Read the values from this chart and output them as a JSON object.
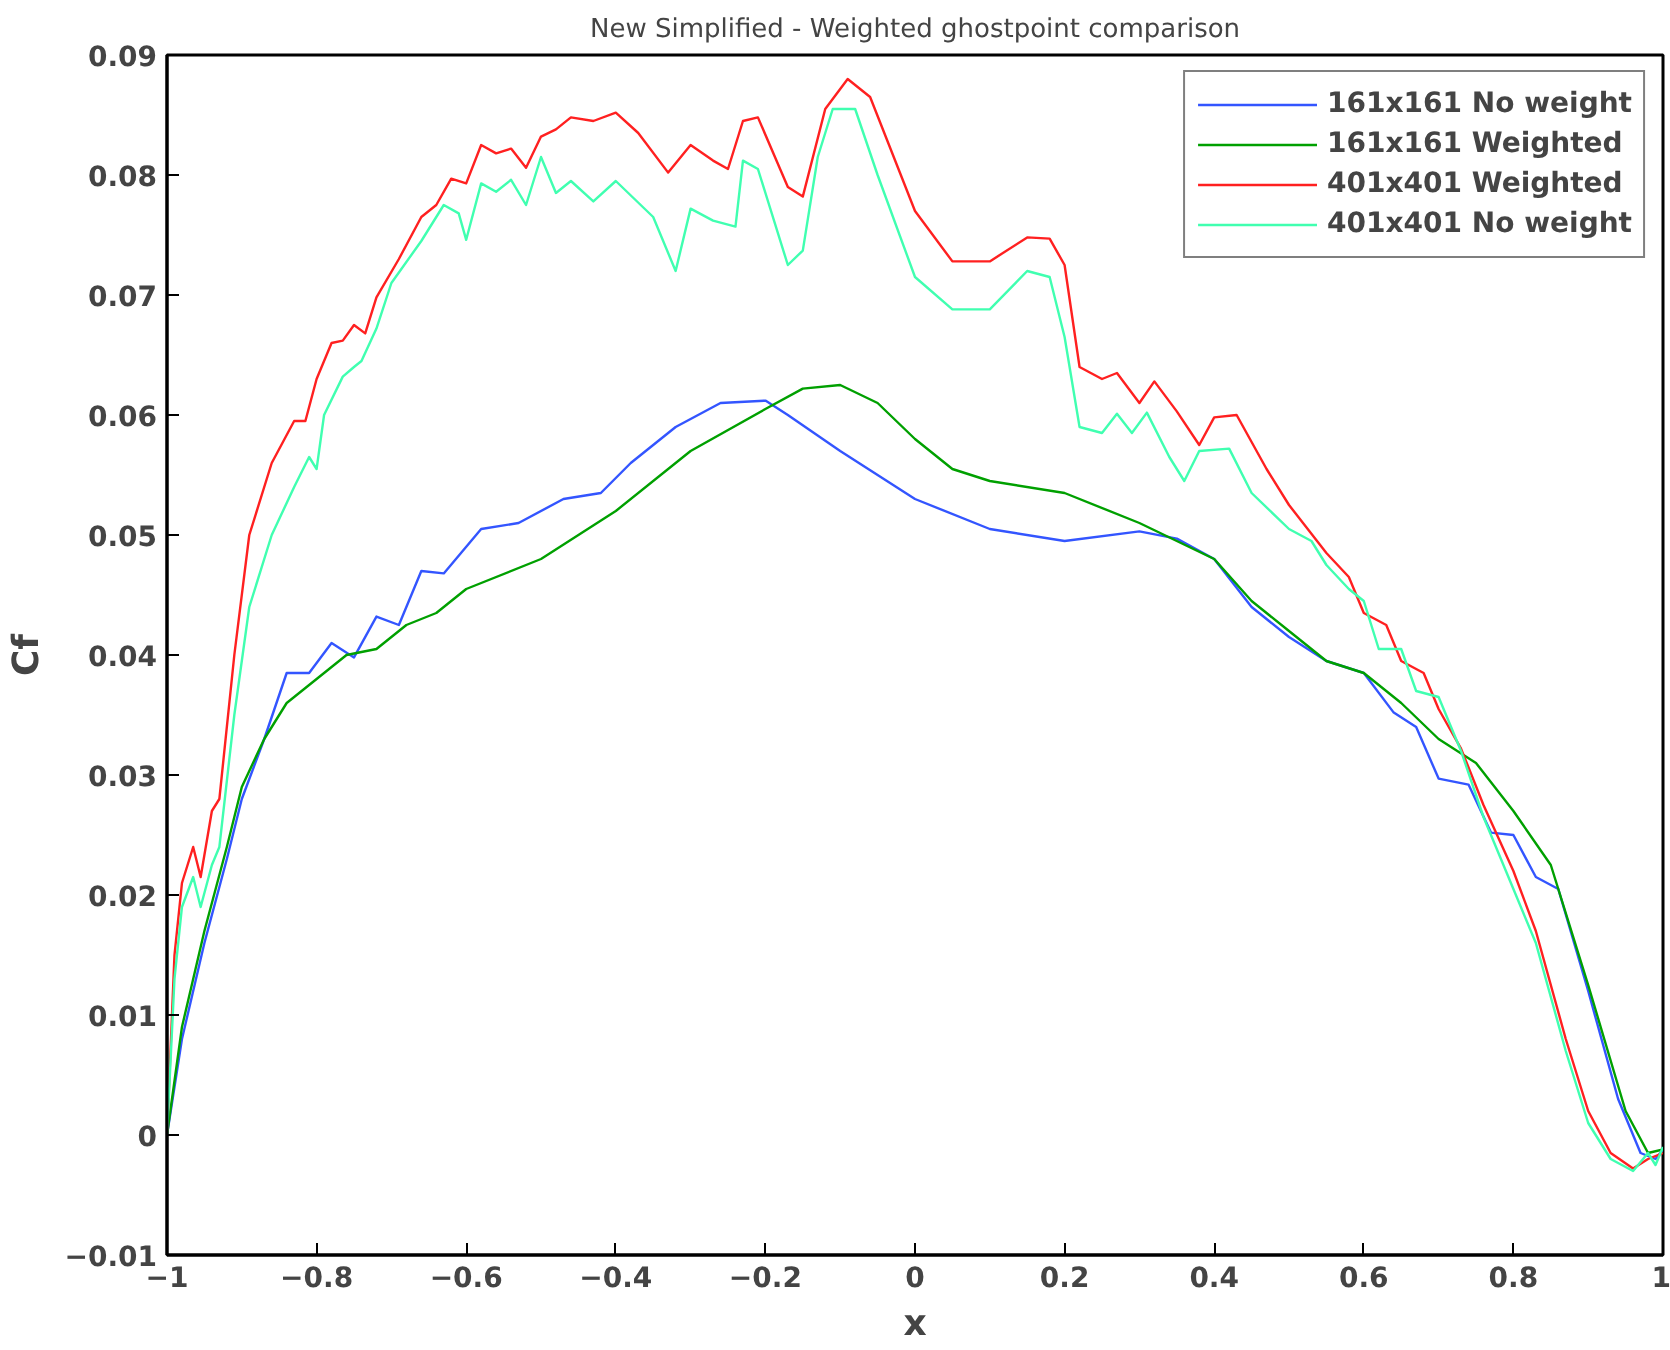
{
  "chart_data": {
    "type": "line",
    "title": "New Simplified - Weighted ghostpoint comparison",
    "xlabel": "x",
    "ylabel": "Cf",
    "xlim": [
      -1,
      1
    ],
    "ylim": [
      -0.01,
      0.09
    ],
    "xticks": [
      -1,
      {
        "value": -0.8,
        "label": "−0.8"
      },
      {
        "value": -0.6,
        "label": "−0.6"
      },
      {
        "value": -0.4,
        "label": "−0.4"
      },
      {
        "value": -0.2,
        "label": "−0.2"
      },
      0,
      0.2,
      0.4,
      0.6,
      0.8,
      1
    ],
    "yticks": [
      {
        "value": -0.01,
        "label": "−0.01"
      },
      0,
      0.01,
      0.02,
      0.03,
      0.04,
      0.05,
      0.06,
      0.07,
      0.08,
      0.09
    ],
    "grid": false,
    "legend": "top right",
    "line_style": "solid",
    "marker": "none",
    "series": [
      {
        "name": "161x161 No weight",
        "color": "#3355ff",
        "x": [
          -1,
          -0.98,
          -0.95,
          -0.92,
          -0.9,
          -0.87,
          -0.84,
          -0.81,
          -0.78,
          -0.75,
          -0.72,
          -0.69,
          -0.66,
          -0.63,
          -0.58,
          -0.53,
          -0.47,
          -0.42,
          -0.38,
          -0.32,
          -0.26,
          -0.2,
          -0.17,
          -0.1,
          0,
          0.1,
          0.2,
          0.3,
          0.35,
          0.4,
          0.45,
          0.5,
          0.55,
          0.6,
          0.64,
          0.67,
          0.7,
          0.74,
          0.77,
          0.8,
          0.83,
          0.86,
          0.9,
          0.94,
          0.97,
          0.99,
          1
        ],
        "values": [
          0,
          0.008,
          0.016,
          0.023,
          0.028,
          0.033,
          0.0385,
          0.0385,
          0.041,
          0.0398,
          0.0432,
          0.0425,
          0.047,
          0.0468,
          0.0505,
          0.051,
          0.053,
          0.0535,
          0.056,
          0.059,
          0.061,
          0.0612,
          0.06,
          0.057,
          0.053,
          0.0505,
          0.0495,
          0.0503,
          0.0497,
          0.048,
          0.044,
          0.0415,
          0.0395,
          0.0385,
          0.0352,
          0.034,
          0.0297,
          0.0292,
          0.0252,
          0.025,
          0.0215,
          0.0205,
          0.012,
          0.003,
          -0.0015,
          -0.002,
          -0.0012
        ]
      },
      {
        "name": "161x161 Weighted",
        "color": "#00a000",
        "x": [
          -1,
          -0.98,
          -0.95,
          -0.92,
          -0.9,
          -0.87,
          -0.84,
          -0.8,
          -0.76,
          -0.72,
          -0.68,
          -0.64,
          -0.6,
          -0.5,
          -0.4,
          -0.3,
          -0.2,
          -0.15,
          -0.1,
          -0.05,
          0,
          0.05,
          0.1,
          0.2,
          0.3,
          0.4,
          0.45,
          0.5,
          0.55,
          0.6,
          0.65,
          0.7,
          0.75,
          0.8,
          0.85,
          0.9,
          0.95,
          0.98,
          1
        ],
        "values": [
          0,
          0.009,
          0.017,
          0.024,
          0.029,
          0.033,
          0.036,
          0.038,
          0.04,
          0.0405,
          0.0425,
          0.0435,
          0.0455,
          0.048,
          0.052,
          0.057,
          0.0605,
          0.0622,
          0.0625,
          0.061,
          0.058,
          0.0555,
          0.0545,
          0.0535,
          0.051,
          0.048,
          0.0445,
          0.042,
          0.0395,
          0.0385,
          0.036,
          0.033,
          0.031,
          0.027,
          0.0225,
          0.0125,
          0.002,
          -0.0015,
          -0.0012
        ]
      },
      {
        "name": "401x401 Weighted",
        "color": "#ff2020",
        "x": [
          -1,
          -0.99,
          -0.98,
          -0.965,
          -0.955,
          -0.94,
          -0.93,
          -0.91,
          -0.89,
          -0.86,
          -0.83,
          -0.815,
          -0.8,
          -0.78,
          -0.765,
          -0.75,
          -0.735,
          -0.72,
          -0.69,
          -0.66,
          -0.64,
          -0.62,
          -0.6,
          -0.58,
          -0.56,
          -0.54,
          -0.52,
          -0.5,
          -0.48,
          -0.46,
          -0.43,
          -0.4,
          -0.37,
          -0.33,
          -0.3,
          -0.27,
          -0.25,
          -0.23,
          -0.21,
          -0.17,
          -0.15,
          -0.12,
          -0.09,
          -0.06,
          0,
          0.05,
          0.1,
          0.15,
          0.18,
          0.2,
          0.22,
          0.25,
          0.27,
          0.3,
          0.32,
          0.35,
          0.38,
          0.4,
          0.43,
          0.47,
          0.5,
          0.55,
          0.58,
          0.6,
          0.63,
          0.65,
          0.68,
          0.7,
          0.73,
          0.76,
          0.8,
          0.83,
          0.87,
          0.9,
          0.93,
          0.96,
          0.98,
          1
        ],
        "values": [
          0,
          0.015,
          0.021,
          0.024,
          0.0215,
          0.027,
          0.028,
          0.04,
          0.05,
          0.056,
          0.0595,
          0.0595,
          0.063,
          0.066,
          0.0662,
          0.0675,
          0.0668,
          0.0698,
          0.073,
          0.0765,
          0.0775,
          0.0797,
          0.0793,
          0.0825,
          0.0818,
          0.0822,
          0.0806,
          0.0832,
          0.0838,
          0.0848,
          0.0845,
          0.0852,
          0.0835,
          0.0802,
          0.0825,
          0.0812,
          0.0805,
          0.0845,
          0.0848,
          0.079,
          0.0782,
          0.0855,
          0.088,
          0.0865,
          0.077,
          0.0728,
          0.0728,
          0.0748,
          0.0747,
          0.0725,
          0.064,
          0.063,
          0.0635,
          0.061,
          0.0628,
          0.0603,
          0.0575,
          0.0598,
          0.06,
          0.0555,
          0.0525,
          0.0485,
          0.0465,
          0.0435,
          0.0425,
          0.0395,
          0.0385,
          0.0355,
          0.0322,
          0.0275,
          0.022,
          0.017,
          0.008,
          0.002,
          -0.0015,
          -0.0028,
          -0.002,
          -0.0015
        ]
      },
      {
        "name": "401x401 No weight",
        "color": "#40ffb0",
        "x": [
          -1,
          -0.99,
          -0.98,
          -0.965,
          -0.955,
          -0.94,
          -0.93,
          -0.91,
          -0.89,
          -0.86,
          -0.83,
          -0.81,
          -0.8,
          -0.79,
          -0.765,
          -0.75,
          -0.74,
          -0.72,
          -0.7,
          -0.66,
          -0.63,
          -0.61,
          -0.6,
          -0.58,
          -0.56,
          -0.54,
          -0.52,
          -0.5,
          -0.48,
          -0.46,
          -0.43,
          -0.4,
          -0.35,
          -0.32,
          -0.3,
          -0.27,
          -0.24,
          -0.23,
          -0.21,
          -0.17,
          -0.15,
          -0.13,
          -0.11,
          -0.08,
          -0.05,
          0,
          0.05,
          0.1,
          0.15,
          0.18,
          0.2,
          0.22,
          0.25,
          0.27,
          0.29,
          0.31,
          0.34,
          0.36,
          0.38,
          0.42,
          0.45,
          0.5,
          0.53,
          0.55,
          0.58,
          0.6,
          0.62,
          0.65,
          0.67,
          0.7,
          0.73,
          0.76,
          0.8,
          0.83,
          0.87,
          0.9,
          0.93,
          0.96,
          0.98,
          0.99,
          1
        ],
        "values": [
          0,
          0.013,
          0.019,
          0.0215,
          0.019,
          0.0225,
          0.024,
          0.035,
          0.044,
          0.05,
          0.054,
          0.0565,
          0.0555,
          0.06,
          0.0632,
          0.064,
          0.0645,
          0.0672,
          0.071,
          0.0745,
          0.0775,
          0.0768,
          0.0746,
          0.0793,
          0.0786,
          0.0796,
          0.0775,
          0.0815,
          0.0785,
          0.0795,
          0.0778,
          0.0795,
          0.0765,
          0.072,
          0.0772,
          0.0762,
          0.0757,
          0.0812,
          0.0805,
          0.0725,
          0.0737,
          0.0815,
          0.0855,
          0.0855,
          0.08,
          0.0715,
          0.0688,
          0.0688,
          0.072,
          0.0715,
          0.0665,
          0.059,
          0.0585,
          0.0601,
          0.0585,
          0.0602,
          0.0565,
          0.0545,
          0.057,
          0.0572,
          0.0535,
          0.0505,
          0.0495,
          0.0475,
          0.0455,
          0.0445,
          0.0405,
          0.0405,
          0.037,
          0.0365,
          0.032,
          0.0265,
          0.0205,
          0.016,
          0.007,
          0.001,
          -0.002,
          -0.003,
          -0.0015,
          -0.0025,
          -0.001
        ]
      }
    ]
  }
}
